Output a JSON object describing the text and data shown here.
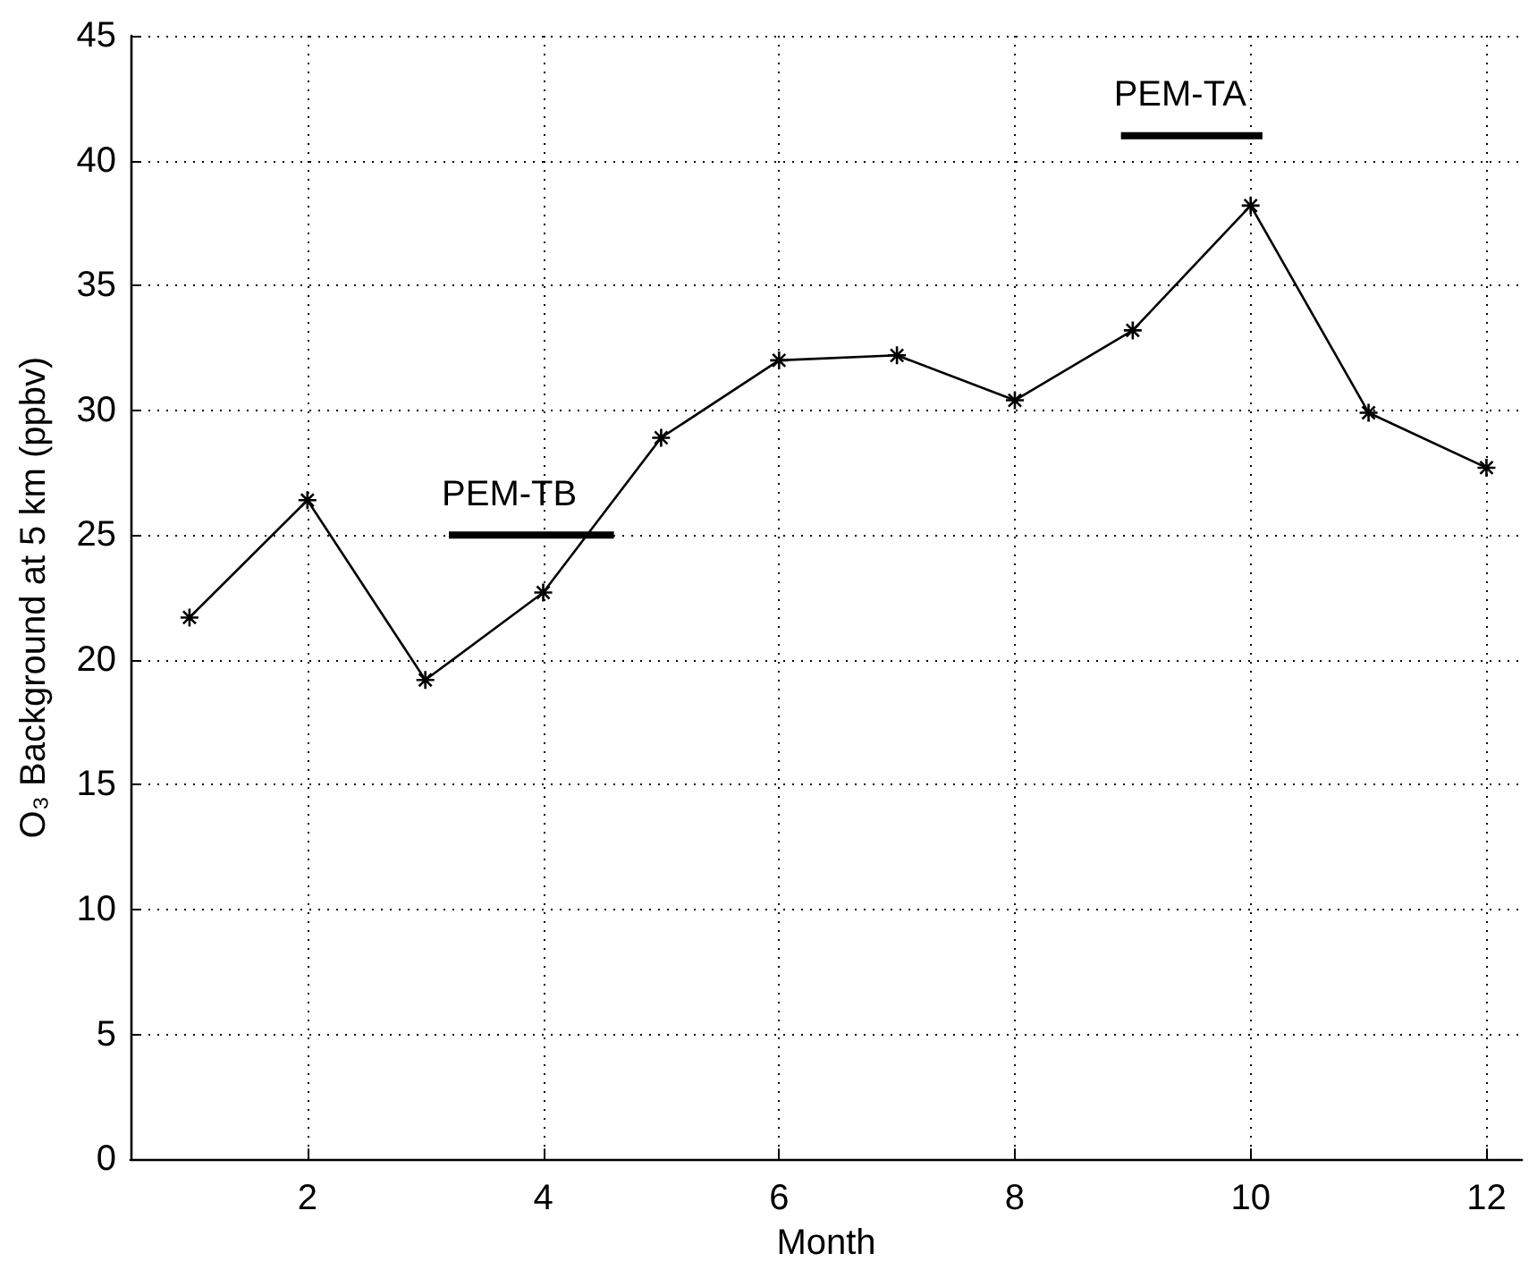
{
  "chart_data": {
    "type": "line",
    "xlabel": "Month",
    "ylabel": "O₃ Background at 5 km (ppbv)",
    "xlim": [
      0.5,
      12.3
    ],
    "xticks": [
      2,
      4,
      6,
      8,
      10,
      12
    ],
    "ylim": [
      0,
      45
    ],
    "yticks": [
      0,
      5,
      10,
      15,
      20,
      25,
      30,
      35,
      40,
      45
    ],
    "grid": true,
    "legend": false,
    "marker": "cross",
    "line_style": "solid",
    "series": [
      {
        "color": "#000000",
        "x": [
          1,
          2,
          3,
          4,
          5,
          6,
          7,
          8,
          9,
          10,
          11,
          12
        ],
        "values": [
          21.7,
          26.4,
          19.2,
          22.7,
          28.9,
          32.0,
          32.2,
          30.4,
          33.2,
          38.2,
          29.9,
          27.7
        ]
      },
      {
        "name": "PEM-TB",
        "color": "#000000",
        "marker": "none",
        "x": [
          3.2,
          4.6
        ],
        "values": [
          25,
          25
        ]
      },
      {
        "name": "PEM-TA",
        "color": "#000000",
        "marker": "none",
        "x": [
          8.9,
          10.1
        ],
        "values": [
          41,
          41
        ]
      }
    ]
  }
}
